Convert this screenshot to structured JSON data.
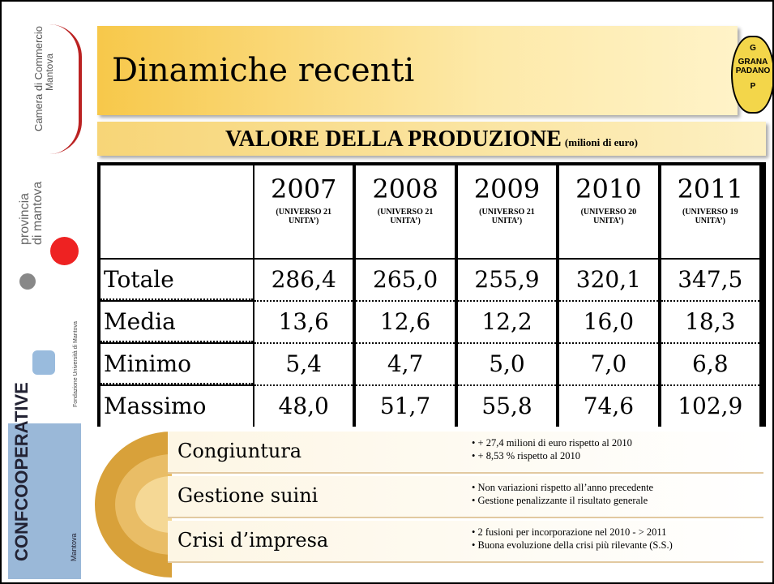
{
  "sidebar": {
    "camera": "Camera di Commercio",
    "camera_city": "Mantova",
    "provincia": "provincia",
    "provincia_city": "di mantova",
    "fondazione": "Fondazione Università di Mantova",
    "confcooperative": "CONFCOOPERATIVE",
    "confcoop_city": "Mantova"
  },
  "logo": {
    "top": "G",
    "line1": "GRANA",
    "line2": "PADANO",
    "bottom": "P"
  },
  "header": {
    "title": "Dinamiche recenti"
  },
  "subtitle": {
    "main": "VALORE DELLA PRODUZIONE",
    "unit": "(milioni di euro)"
  },
  "table": {
    "columns": [
      {
        "year": "2007",
        "note": "(UNIVERSO 21 UNITA’)"
      },
      {
        "year": "2008",
        "note": "(UNIVERSO 21 UNITA’)"
      },
      {
        "year": "2009",
        "note": "(UNIVERSO 21 UNITA’)"
      },
      {
        "year": "2010",
        "note": "(UNIVERSO 20 UNITA’)"
      },
      {
        "year": "2011",
        "note": "(UNIVERSO 19 UNITA’)"
      }
    ],
    "rows": [
      {
        "label": "Totale",
        "values": [
          "286,4",
          "265,0",
          "255,9",
          "320,1",
          "347,5"
        ]
      },
      {
        "label": "Media",
        "values": [
          "13,6",
          "12,6",
          "12,2",
          "16,0",
          "18,3"
        ]
      },
      {
        "label": "Minimo",
        "values": [
          "5,4",
          "4,7",
          "5,0",
          "7,0",
          "6,8"
        ]
      },
      {
        "label": "Massimo",
        "values": [
          "48,0",
          "51,7",
          "55,8",
          "74,6",
          "102,9"
        ]
      }
    ]
  },
  "items": [
    {
      "label": "Congiuntura",
      "bullets": [
        "+ 27,4 milioni di euro rispetto al 2010",
        "+ 8,53 % rispetto al 2010"
      ]
    },
    {
      "label": "Gestione suini",
      "bullets": [
        "Non variazioni rispetto all’anno precedente",
        "Gestione penalizzante il risultato generale"
      ]
    },
    {
      "label": "Crisi d’impresa",
      "bullets": [
        "2 fusioni per incorporazione nel 2010  - > 2011",
        "Buona evoluzione della crisi più rilevante (S.S.)"
      ]
    }
  ]
}
